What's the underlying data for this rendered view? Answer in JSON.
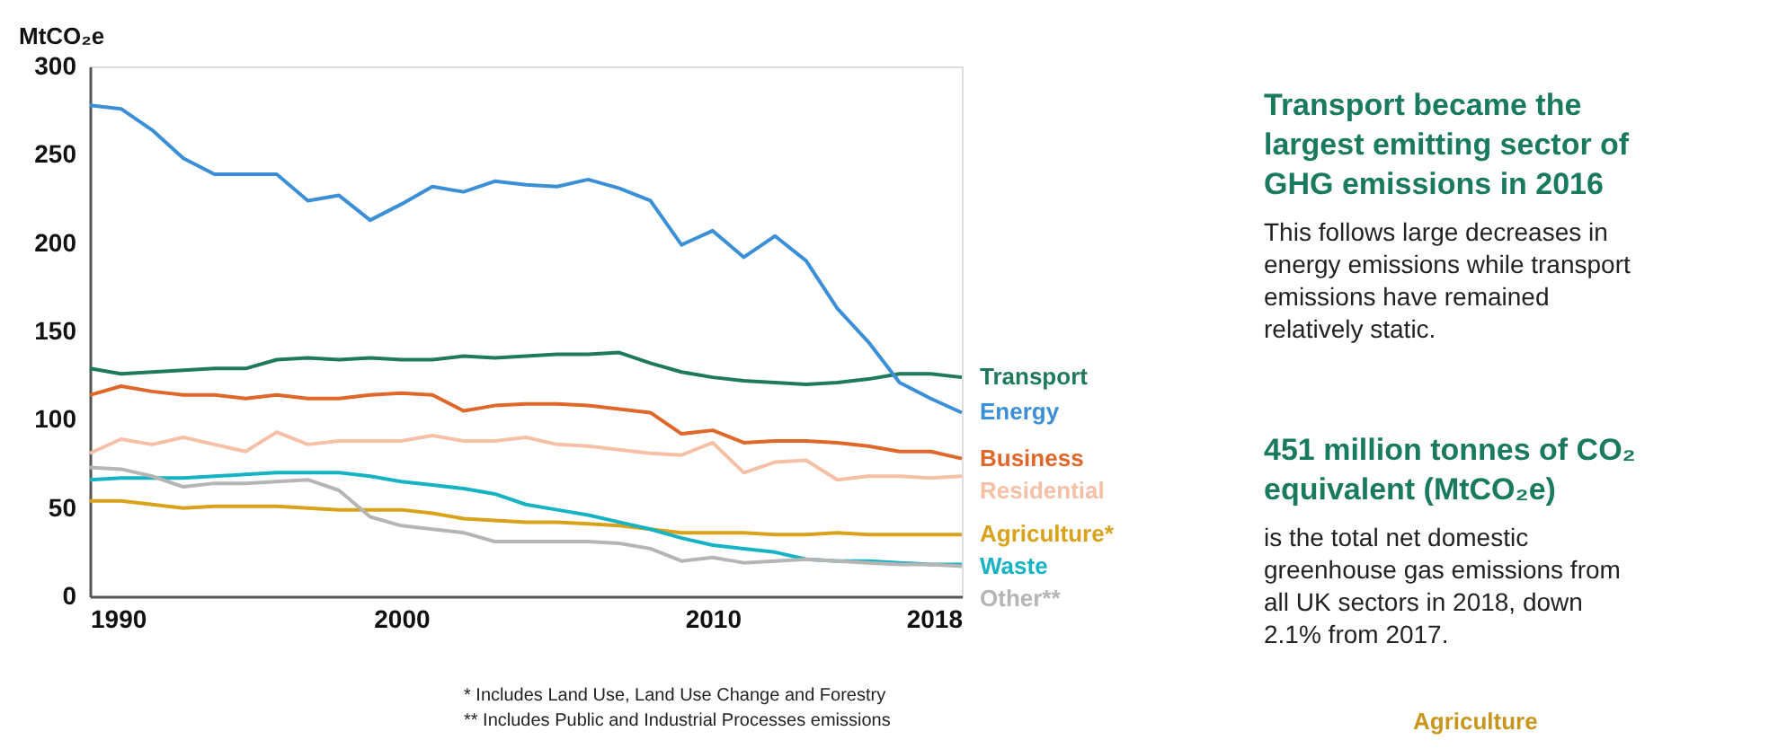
{
  "chart_data": {
    "type": "line",
    "ylabel": "MtCO₂e",
    "x": [
      1990,
      1991,
      1992,
      1993,
      1994,
      1995,
      1996,
      1997,
      1998,
      1999,
      2000,
      2001,
      2002,
      2003,
      2004,
      2005,
      2006,
      2007,
      2008,
      2009,
      2010,
      2011,
      2012,
      2013,
      2014,
      2015,
      2016,
      2017,
      2018
    ],
    "xlim": [
      1990,
      2018
    ],
    "xticks": [
      1990,
      2000,
      2010,
      2018
    ],
    "ylim": [
      0,
      300
    ],
    "yticks": [
      0,
      50,
      100,
      150,
      200,
      250,
      300
    ],
    "grid": false,
    "legend": false,
    "series": [
      {
        "name": "Transport",
        "color": "#1f7a5c",
        "values": [
          129,
          126,
          127,
          128,
          129,
          129,
          134,
          135,
          134,
          135,
          134,
          134,
          136,
          135,
          136,
          137,
          137,
          138,
          132,
          127,
          124,
          122,
          121,
          120,
          121,
          123,
          126,
          126,
          124
        ]
      },
      {
        "name": "Energy",
        "color": "#3a8fd6",
        "values": [
          278,
          276,
          264,
          248,
          239,
          239,
          239,
          224,
          227,
          213,
          222,
          232,
          229,
          235,
          233,
          232,
          236,
          231,
          224,
          199,
          207,
          192,
          204,
          190,
          163,
          144,
          121,
          112,
          104
        ]
      },
      {
        "name": "Business",
        "color": "#e0672a",
        "values": [
          114,
          119,
          116,
          114,
          114,
          112,
          114,
          112,
          112,
          114,
          115,
          114,
          105,
          108,
          109,
          109,
          108,
          106,
          104,
          92,
          94,
          87,
          88,
          88,
          87,
          85,
          82,
          82,
          78
        ]
      },
      {
        "name": "Residential",
        "color": "#f5c0a5",
        "values": [
          81,
          89,
          86,
          90,
          86,
          82,
          93,
          86,
          88,
          88,
          88,
          91,
          88,
          88,
          90,
          86,
          85,
          83,
          81,
          80,
          87,
          70,
          76,
          77,
          66,
          68,
          68,
          67,
          68
        ]
      },
      {
        "name": "Agriculture*",
        "color": "#d9a21b",
        "values": [
          54,
          54,
          52,
          50,
          51,
          51,
          51,
          50,
          49,
          49,
          49,
          47,
          44,
          43,
          42,
          42,
          41,
          40,
          38,
          36,
          36,
          36,
          35,
          35,
          36,
          35,
          35,
          35,
          35
        ]
      },
      {
        "name": "Waste",
        "color": "#16b3c4",
        "values": [
          66,
          67,
          67,
          67,
          68,
          69,
          70,
          70,
          70,
          68,
          65,
          63,
          61,
          58,
          52,
          49,
          46,
          42,
          38,
          33,
          29,
          27,
          25,
          21,
          20,
          20,
          19,
          18,
          18
        ]
      },
      {
        "name": "Other**",
        "color": "#b5b5b5",
        "values": [
          73,
          72,
          68,
          62,
          64,
          64,
          65,
          66,
          60,
          45,
          40,
          38,
          36,
          31,
          31,
          31,
          31,
          30,
          27,
          20,
          22,
          19,
          20,
          21,
          20,
          19,
          18,
          18,
          17
        ]
      }
    ],
    "annotations": [
      "Transport became the largest emitting sector of GHG emissions in 2016",
      "This follows large decreases in energy emissions while transport emissions have remained relatively static.",
      "451 million tonnes of CO₂ equivalent (MtCO₂e)",
      "is the total net domestic greenhouse gas emissions from all UK sectors in 2018, down 2.1% from 2017.",
      "* Includes Land Use, Land Use Change and Forestry",
      "** Includes Public and Industrial Processes  emissions",
      "Agriculture"
    ]
  }
}
